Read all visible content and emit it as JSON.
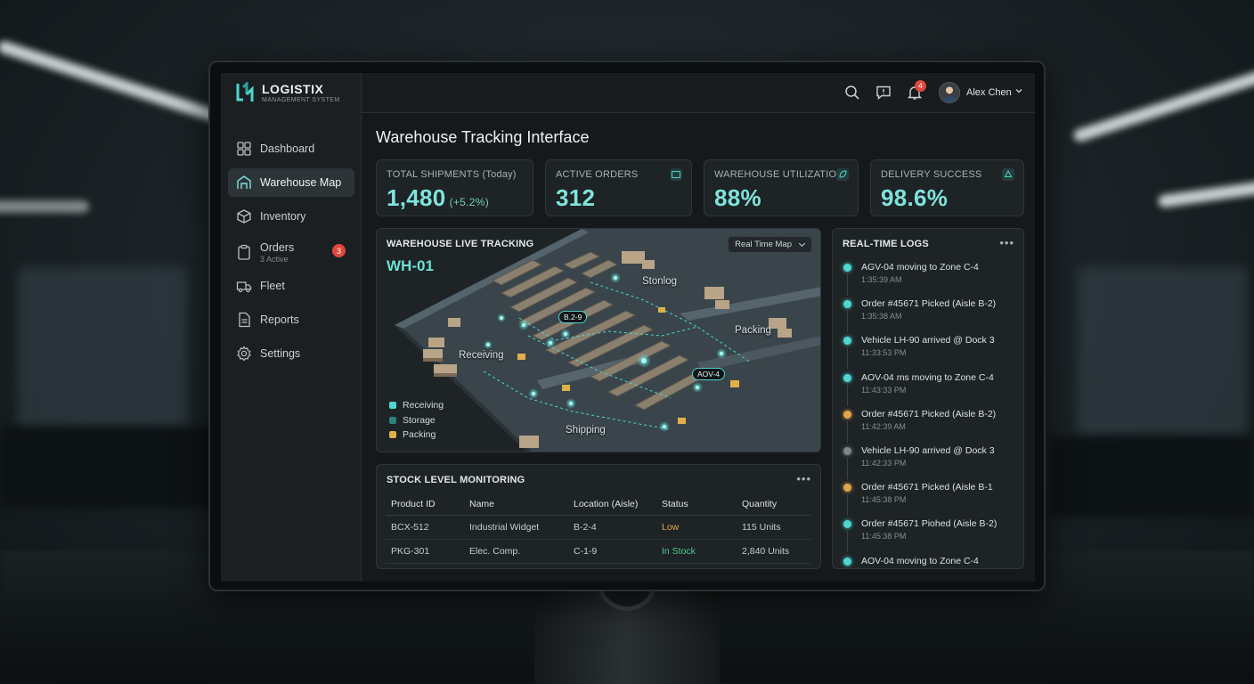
{
  "brand": {
    "name": "LOGISTIX",
    "subtitle": "MANAGEMENT SYSTEM"
  },
  "sidebar": {
    "items": [
      {
        "label": "Dashboard",
        "icon": "dashboard-icon",
        "active": false
      },
      {
        "label": "Warehouse Map",
        "icon": "warehouse-icon",
        "active": true
      },
      {
        "label": "Inventory",
        "icon": "box-icon",
        "active": false
      },
      {
        "label": "Orders",
        "sub": "3 Active",
        "badge": "3",
        "icon": "clipboard-icon",
        "active": false
      },
      {
        "label": "Fleet",
        "icon": "truck-icon",
        "active": false
      },
      {
        "label": "Reports",
        "icon": "report-icon",
        "active": false
      },
      {
        "label": "Settings",
        "icon": "gear-icon",
        "active": false
      }
    ]
  },
  "header": {
    "notification_count": "4",
    "user_name": "Alex Chen"
  },
  "page": {
    "title": "Warehouse Tracking Interface"
  },
  "kpis": [
    {
      "label": "TOTAL SHIPMENTS (Today)",
      "value": "1,480",
      "change": "(+5.2%)"
    },
    {
      "label": "ACTIVE ORDERS",
      "value": "312",
      "icon": "orders-icon"
    },
    {
      "label": "WAREHOUSE UTILIZATION",
      "value": "88%",
      "icon": "leaf-icon"
    },
    {
      "label": "DELIVERY SUCCESS",
      "value": "98.6%",
      "icon": "recycle-icon"
    }
  ],
  "tracking": {
    "title": "WAREHOUSE LIVE TRACKING",
    "warehouse_id": "WH-01",
    "view_select": "Real Time Map",
    "zones": {
      "storage": "Stonlog",
      "packing": "Packing",
      "receiving": "Receiving",
      "shipping": "Shipping"
    },
    "tags": [
      "B.2-9",
      "AOV-4"
    ],
    "legend": [
      {
        "label": "Receiving",
        "color": "#4fd6cf"
      },
      {
        "label": "Storage",
        "color": "#2f7f7f"
      },
      {
        "label": "Packing",
        "color": "#e0b04a"
      }
    ]
  },
  "stock": {
    "title": "STOCK LEVEL MONITORING",
    "columns": [
      "Product ID",
      "Name",
      "Location (Aisle)",
      "Status",
      "Quantity"
    ],
    "rows": [
      {
        "id": "BCX-512",
        "name": "Industrial Widget",
        "location": "B-2-4",
        "status": "Low",
        "quantity": "115 Units"
      },
      {
        "id": "PKG-301",
        "name": "Elec. Comp.",
        "location": "C-1-9",
        "status": "In Stock",
        "quantity": "2,840 Units"
      }
    ]
  },
  "logs": {
    "title": "REAL-TIME LOGS",
    "entries": [
      {
        "text": "AGV-04 moving to Zone C-4",
        "time": "1:35:39 AM",
        "color": "#4fd6cf"
      },
      {
        "text": "Order #45671 Picked (Aisle B-2)",
        "time": "1:35:38 AM",
        "color": "#4fd6cf"
      },
      {
        "text": "Vehicle LH-90 arrived @ Dock 3",
        "time": "11:33:53 PM",
        "color": "#4fd6cf"
      },
      {
        "text": "AOV-04 ms moving to Zone C-4",
        "time": "11:43:33 PM",
        "color": "#4fd6cf"
      },
      {
        "text": "Order #45671 Picked (Aisle B-2)",
        "time": "11:42:39 AM",
        "color": "#e0a64a"
      },
      {
        "text": "Vehicle LH-90 arrived @ Dock 3",
        "time": "11:42:33 PM",
        "color": "#7d868a"
      },
      {
        "text": "Order #45671 Picked (Aisle B-1",
        "time": "11:45:38 PM",
        "color": "#e0a64a"
      },
      {
        "text": "Order #45671 Piohed (Aisle B-2)",
        "time": "11:45:38 PM",
        "color": "#4fd6cf"
      },
      {
        "text": "AOV-04 moving to Zone C-4",
        "time": "",
        "color": "#4fd6cf"
      }
    ]
  }
}
